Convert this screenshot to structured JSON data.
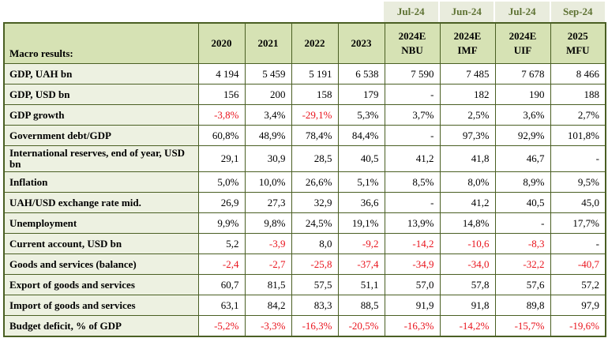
{
  "colors": {
    "table_border": "#4a5f23",
    "header_bg": "#d6e2b4",
    "row_label_bg": "#edf1e1",
    "strip_bg": "#e9ecdd",
    "strip_text_green": "#5e7233",
    "negative_value_red": "#e9141d",
    "value_text": "#000000"
  },
  "strip": {
    "dates": [
      "Jul-24",
      "Jun-24",
      "Jul-24",
      "Sep-24"
    ]
  },
  "header": {
    "row_label": "Macro results:",
    "columns": [
      {
        "line1": "2020",
        "line2": ""
      },
      {
        "line1": "2021",
        "line2": ""
      },
      {
        "line1": "2022",
        "line2": ""
      },
      {
        "line1": "2023",
        "line2": ""
      },
      {
        "line1": "2024E",
        "line2": "NBU"
      },
      {
        "line1": "2024E",
        "line2": "IMF"
      },
      {
        "line1": "2024E",
        "line2": "UIF"
      },
      {
        "line1": "2025",
        "line2": "MFU"
      }
    ]
  },
  "rows": [
    {
      "label": "GDP, UAH bn",
      "values": [
        "4 194",
        "5 459",
        "5 191",
        "6 538",
        "7 590",
        "7 485",
        "7 678",
        "8 466"
      ],
      "red": [
        false,
        false,
        false,
        false,
        false,
        false,
        false,
        false
      ]
    },
    {
      "label": "GDP, USD bn",
      "values": [
        "156",
        "200",
        "158",
        "179",
        "-",
        "182",
        "190",
        "188"
      ],
      "red": [
        false,
        false,
        false,
        false,
        false,
        false,
        false,
        false
      ]
    },
    {
      "label": "GDP growth",
      "values": [
        "-3,8%",
        "3,4%",
        "-29,1%",
        "5,3%",
        "3,7%",
        "2,5%",
        "3,6%",
        "2,7%"
      ],
      "red": [
        true,
        false,
        true,
        false,
        false,
        false,
        false,
        false
      ]
    },
    {
      "label": "Government debt/GDP",
      "values": [
        "60,8%",
        "48,9%",
        "78,4%",
        "84,4%",
        "-",
        "97,3%",
        "92,9%",
        "101,8%"
      ],
      "red": [
        false,
        false,
        false,
        false,
        false,
        false,
        false,
        false
      ]
    },
    {
      "label": "International reserves, end of year, USD bn",
      "values": [
        "29,1",
        "30,9",
        "28,5",
        "40,5",
        "41,2",
        "41,8",
        "46,7",
        "-"
      ],
      "red": [
        false,
        false,
        false,
        false,
        false,
        false,
        false,
        false
      ]
    },
    {
      "label": "Inflation",
      "values": [
        "5,0%",
        "10,0%",
        "26,6%",
        "5,1%",
        "8,5%",
        "8,0%",
        "8,9%",
        "9,5%"
      ],
      "red": [
        false,
        false,
        false,
        false,
        false,
        false,
        false,
        false
      ]
    },
    {
      "label": "UAH/USD exchange rate mid.",
      "values": [
        "26,9",
        "27,3",
        "32,9",
        "36,6",
        "-",
        "41,2",
        "40,5",
        "45,0"
      ],
      "red": [
        false,
        false,
        false,
        false,
        false,
        false,
        false,
        false
      ]
    },
    {
      "label": "Unemployment",
      "values": [
        "9,9%",
        "9,8%",
        "24,5%",
        "19,1%",
        "13,9%",
        "14,8%",
        "-",
        "17,7%"
      ],
      "red": [
        false,
        false,
        false,
        false,
        false,
        false,
        false,
        false
      ]
    },
    {
      "label": "Current account, USD bn",
      "values": [
        "5,2",
        "-3,9",
        "8,0",
        "-9,2",
        "-14,2",
        "-10,6",
        "-8,3",
        "-"
      ],
      "red": [
        false,
        true,
        false,
        true,
        true,
        true,
        true,
        false
      ]
    },
    {
      "label": "Goods and services (balance)",
      "values": [
        "-2,4",
        "-2,7",
        "-25,8",
        "-37,4",
        "-34,9",
        "-34,0",
        "-32,2",
        "-40,7"
      ],
      "red": [
        true,
        true,
        true,
        true,
        true,
        true,
        true,
        true
      ]
    },
    {
      "label": "Export of goods and services",
      "values": [
        "60,7",
        "81,5",
        "57,5",
        "51,1",
        "57,0",
        "57,8",
        "57,6",
        "57,2"
      ],
      "red": [
        false,
        false,
        false,
        false,
        false,
        false,
        false,
        false
      ]
    },
    {
      "label": "Import of goods and services",
      "values": [
        "63,1",
        "84,2",
        "83,3",
        "88,5",
        "91,9",
        "91,8",
        "89,8",
        "97,9"
      ],
      "red": [
        false,
        false,
        false,
        false,
        false,
        false,
        false,
        false
      ]
    },
    {
      "label": "Budget deficit, % of GDP",
      "values": [
        "-5,2%",
        "-3,3%",
        "-16,3%",
        "-20,5%",
        "-16,3%",
        "-14,2%",
        "-15,7%",
        "-19,6%"
      ],
      "red": [
        true,
        true,
        true,
        true,
        true,
        true,
        true,
        true
      ]
    }
  ]
}
